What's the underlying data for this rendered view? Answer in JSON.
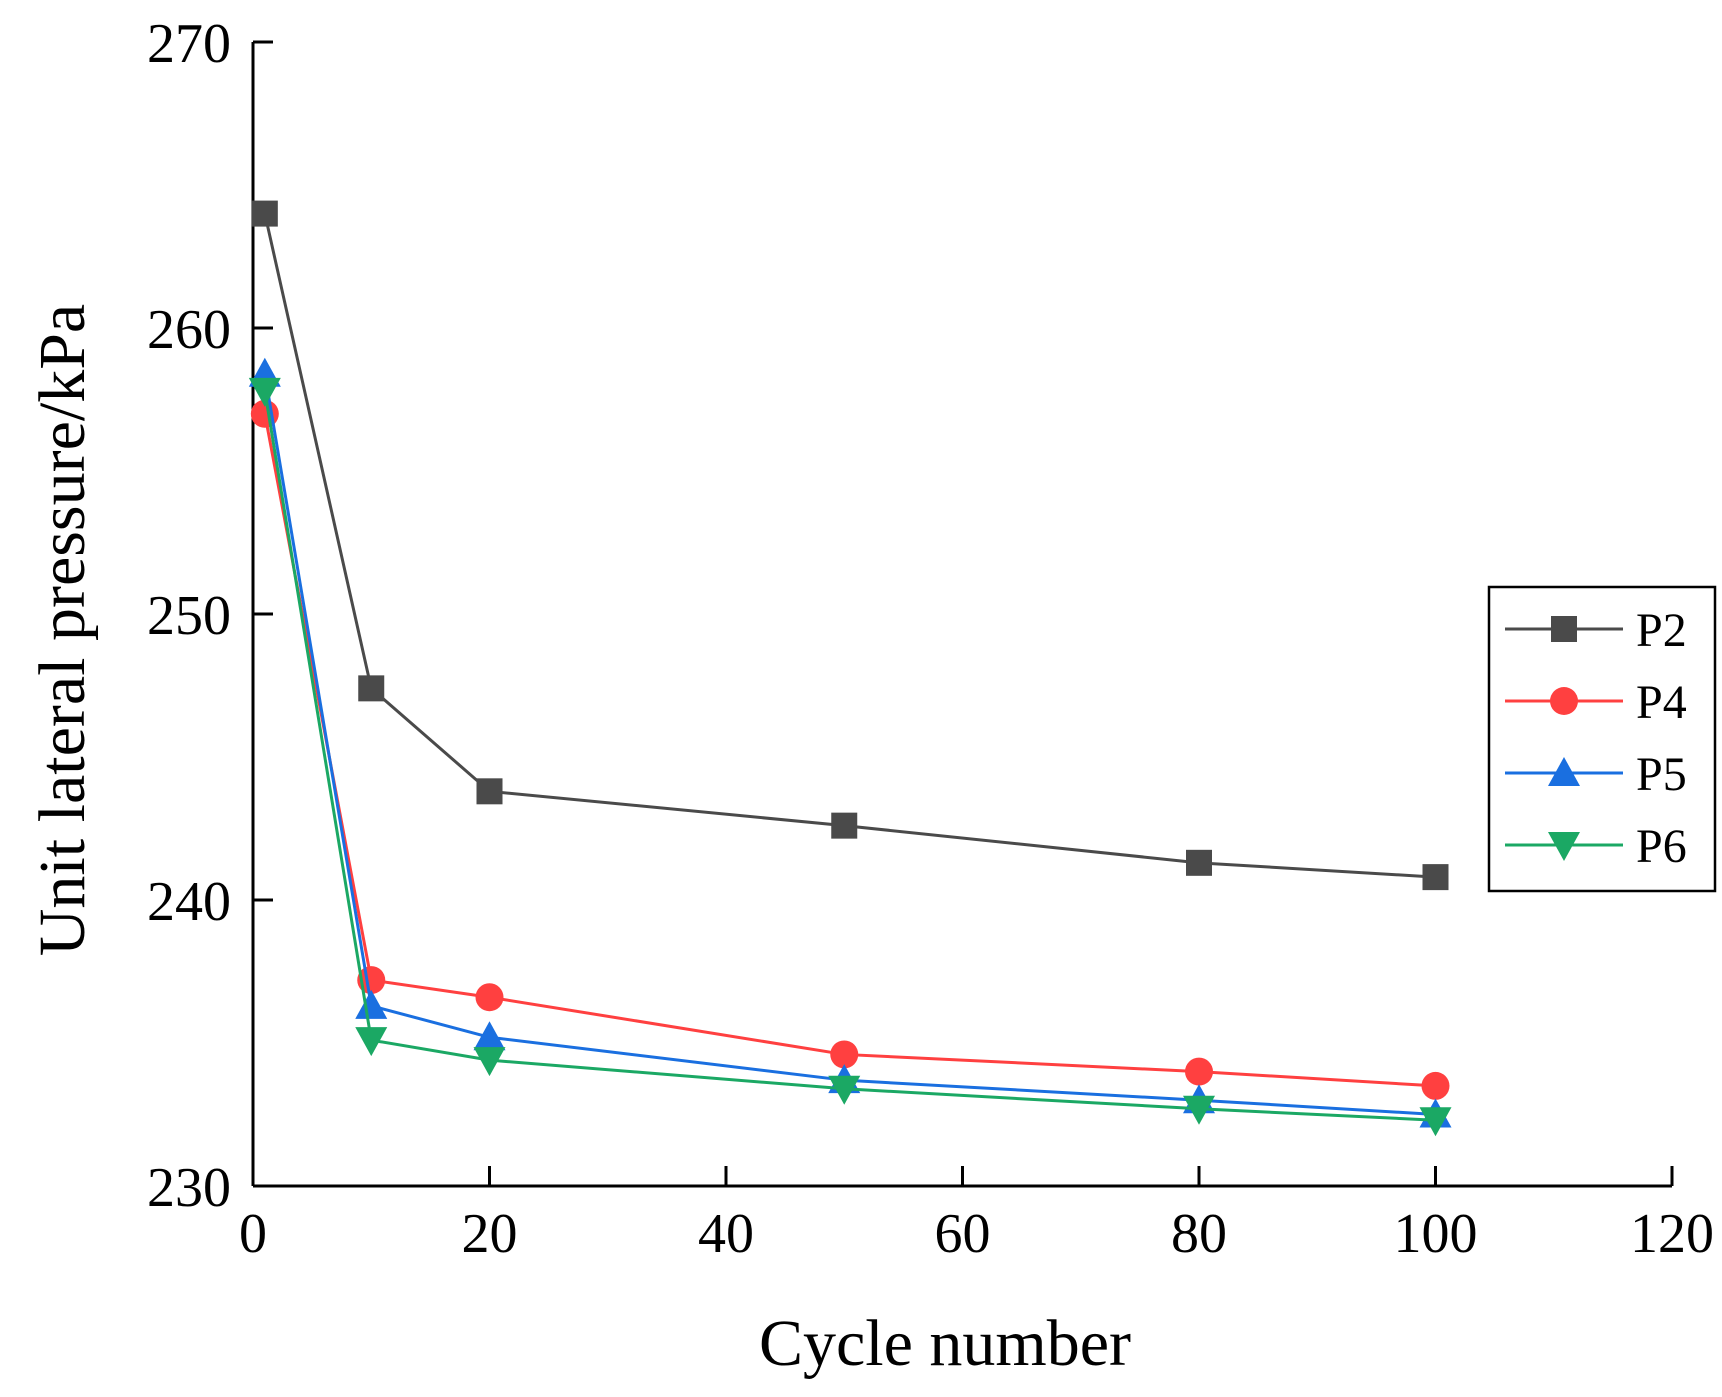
{
  "chart_data": {
    "type": "line",
    "title": "",
    "xlabel": "Cycle number",
    "ylabel": "Unit lateral pressure/kPa",
    "xlim": [
      0,
      120
    ],
    "ylim": [
      230,
      270
    ],
    "xticks": [
      0,
      20,
      40,
      60,
      80,
      100,
      120
    ],
    "yticks": [
      230,
      240,
      250,
      260,
      270
    ],
    "x": [
      1,
      10,
      20,
      50,
      80,
      100
    ],
    "grid": false,
    "legend_position": "right",
    "series": [
      {
        "name": "P2",
        "color": "#4a4a4a",
        "marker": "square",
        "values": [
          264.0,
          247.4,
          243.8,
          242.6,
          241.3,
          240.8
        ]
      },
      {
        "name": "P4",
        "color": "#ff4040",
        "marker": "circle",
        "values": [
          257.0,
          237.2,
          236.6,
          234.6,
          234.0,
          233.5
        ]
      },
      {
        "name": "P5",
        "color": "#1a6fe0",
        "marker": "triangle-up",
        "values": [
          258.4,
          236.3,
          235.2,
          233.7,
          233.0,
          232.5
        ]
      },
      {
        "name": "P6",
        "color": "#1ba864",
        "marker": "triangle-down",
        "values": [
          257.8,
          235.1,
          234.4,
          233.4,
          232.7,
          232.3
        ]
      }
    ]
  }
}
